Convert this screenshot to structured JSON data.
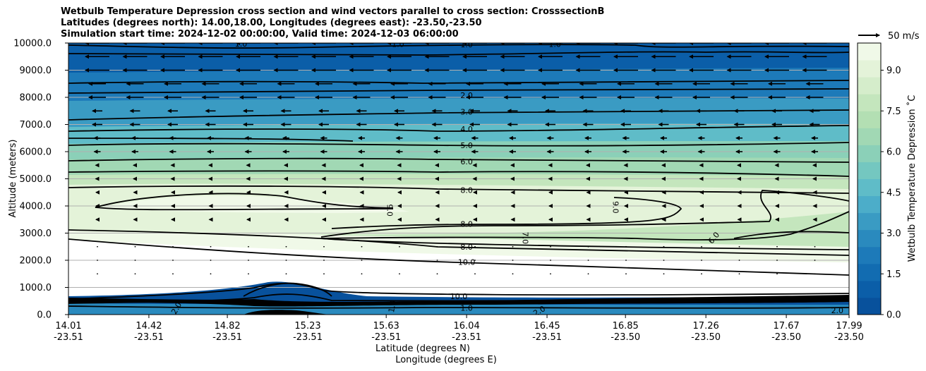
{
  "chart_data": {
    "type": "contour",
    "title_lines": [
      "Wetbulb Temperature Depression cross section and wind vectors parallel to cross section: CrosssectionB",
      "Latitudes (degrees north): 14.00,18.00, Longitudes (degrees east): -23.50,-23.50",
      "Simulation start time: 2024-12-02 00:00:00, Valid time: 2024-12-03 06:00:00"
    ],
    "ylabel": "Altitude (meters)",
    "xlabel_lat": "Latitude (degrees N)",
    "xlabel_lon": "Longitude (degrees E)",
    "ylim": [
      0,
      10000
    ],
    "xlim": [
      14.01,
      17.99
    ],
    "y_ticks": [
      "0.0",
      "1000.0",
      "2000.0",
      "3000.0",
      "4000.0",
      "5000.0",
      "6000.0",
      "7000.0",
      "8000.0",
      "9000.0",
      "10000.0"
    ],
    "y_tick_values": [
      0,
      1000,
      2000,
      3000,
      4000,
      5000,
      6000,
      7000,
      8000,
      9000,
      10000
    ],
    "x_ticks": [
      {
        "lat": "14.01",
        "lon": "-23.51",
        "v": 14.01
      },
      {
        "lat": "14.42",
        "lon": "-23.51",
        "v": 14.42
      },
      {
        "lat": "14.82",
        "lon": "-23.51",
        "v": 14.82
      },
      {
        "lat": "15.23",
        "lon": "-23.51",
        "v": 15.23
      },
      {
        "lat": "15.63",
        "lon": "-23.51",
        "v": 15.63
      },
      {
        "lat": "16.04",
        "lon": "-23.51",
        "v": 16.04
      },
      {
        "lat": "16.45",
        "lon": "-23.51",
        "v": 16.45
      },
      {
        "lat": "16.85",
        "lon": "-23.50",
        "v": 16.85
      },
      {
        "lat": "17.26",
        "lon": "-23.50",
        "v": 17.26
      },
      {
        "lat": "17.67",
        "lon": "-23.50",
        "v": 17.67
      },
      {
        "lat": "17.99",
        "lon": "-23.50",
        "v": 17.99
      }
    ],
    "grid": "horizontal",
    "colorbar": {
      "label": "Wetbulb Temperature Depression ˚C",
      "range": [
        0,
        10
      ],
      "ticks": [
        "0.0",
        "1.5",
        "3.0",
        "4.5",
        "6.0",
        "7.5",
        "9.0"
      ],
      "tick_values": [
        0,
        1.5,
        3.0,
        4.5,
        6.0,
        7.5,
        9.0
      ],
      "colors": [
        "#08519c",
        "#0b5ea8",
        "#126cb1",
        "#1d7ab9",
        "#2a8abe",
        "#3a9bc3",
        "#4cadc9",
        "#5fbcc8",
        "#74c7c0",
        "#8bd0b8",
        "#a1d8b4",
        "#b3dfb3",
        "#c4e6bd",
        "#d5edcb",
        "#e4f3d9",
        "#f0f9e8"
      ]
    },
    "quiver_key": {
      "label": "50 m/s",
      "speed_ms": 50
    },
    "contour_labels": [
      {
        "text": "1.0",
        "x": 14.89,
        "y": 9980,
        "rot": 0
      },
      {
        "text": "1.0",
        "x": 15.69,
        "y": 9960,
        "rot": 0
      },
      {
        "text": "1.0",
        "x": 16.04,
        "y": 9950,
        "rot": 0
      },
      {
        "text": "1.0",
        "x": 16.49,
        "y": 9960,
        "rot": 0
      },
      {
        "text": "2.0",
        "x": 16.04,
        "y": 8080,
        "rot": 0
      },
      {
        "text": "3.0",
        "x": 16.04,
        "y": 7470,
        "rot": 0
      },
      {
        "text": "4.0",
        "x": 16.04,
        "y": 6830,
        "rot": 0
      },
      {
        "text": "5.0",
        "x": 16.04,
        "y": 6230,
        "rot": 0
      },
      {
        "text": "6.0",
        "x": 16.04,
        "y": 5640,
        "rot": 0
      },
      {
        "text": "8.0",
        "x": 16.04,
        "y": 4580,
        "rot": 0
      },
      {
        "text": "9.0",
        "x": 15.65,
        "y": 3840,
        "rot": 90
      },
      {
        "text": "9.0",
        "x": 16.8,
        "y": 3950,
        "rot": 90
      },
      {
        "text": "8.0",
        "x": 16.04,
        "y": 3340,
        "rot": 0
      },
      {
        "text": "7.0",
        "x": 16.34,
        "y": 2820,
        "rot": 90
      },
      {
        "text": "6.0",
        "x": 17.3,
        "y": 2830,
        "rot": -50
      },
      {
        "text": "8.0",
        "x": 16.04,
        "y": 2490,
        "rot": 0
      },
      {
        "text": "10.0",
        "x": 16.04,
        "y": 1940,
        "rot": 0
      },
      {
        "text": "10.0",
        "x": 16.0,
        "y": 680,
        "rot": 0
      },
      {
        "text": "1.0",
        "x": 16.04,
        "y": 250,
        "rot": 0
      },
      {
        "text": "2.0",
        "x": 14.56,
        "y": 240,
        "rot": -60
      },
      {
        "text": "2.0",
        "x": 16.41,
        "y": 140,
        "rot": -30
      },
      {
        "text": "1.0",
        "x": 15.66,
        "y": 300,
        "rot": -80
      },
      {
        "text": "2.0",
        "x": 17.93,
        "y": 160,
        "rot": 0
      }
    ]
  }
}
